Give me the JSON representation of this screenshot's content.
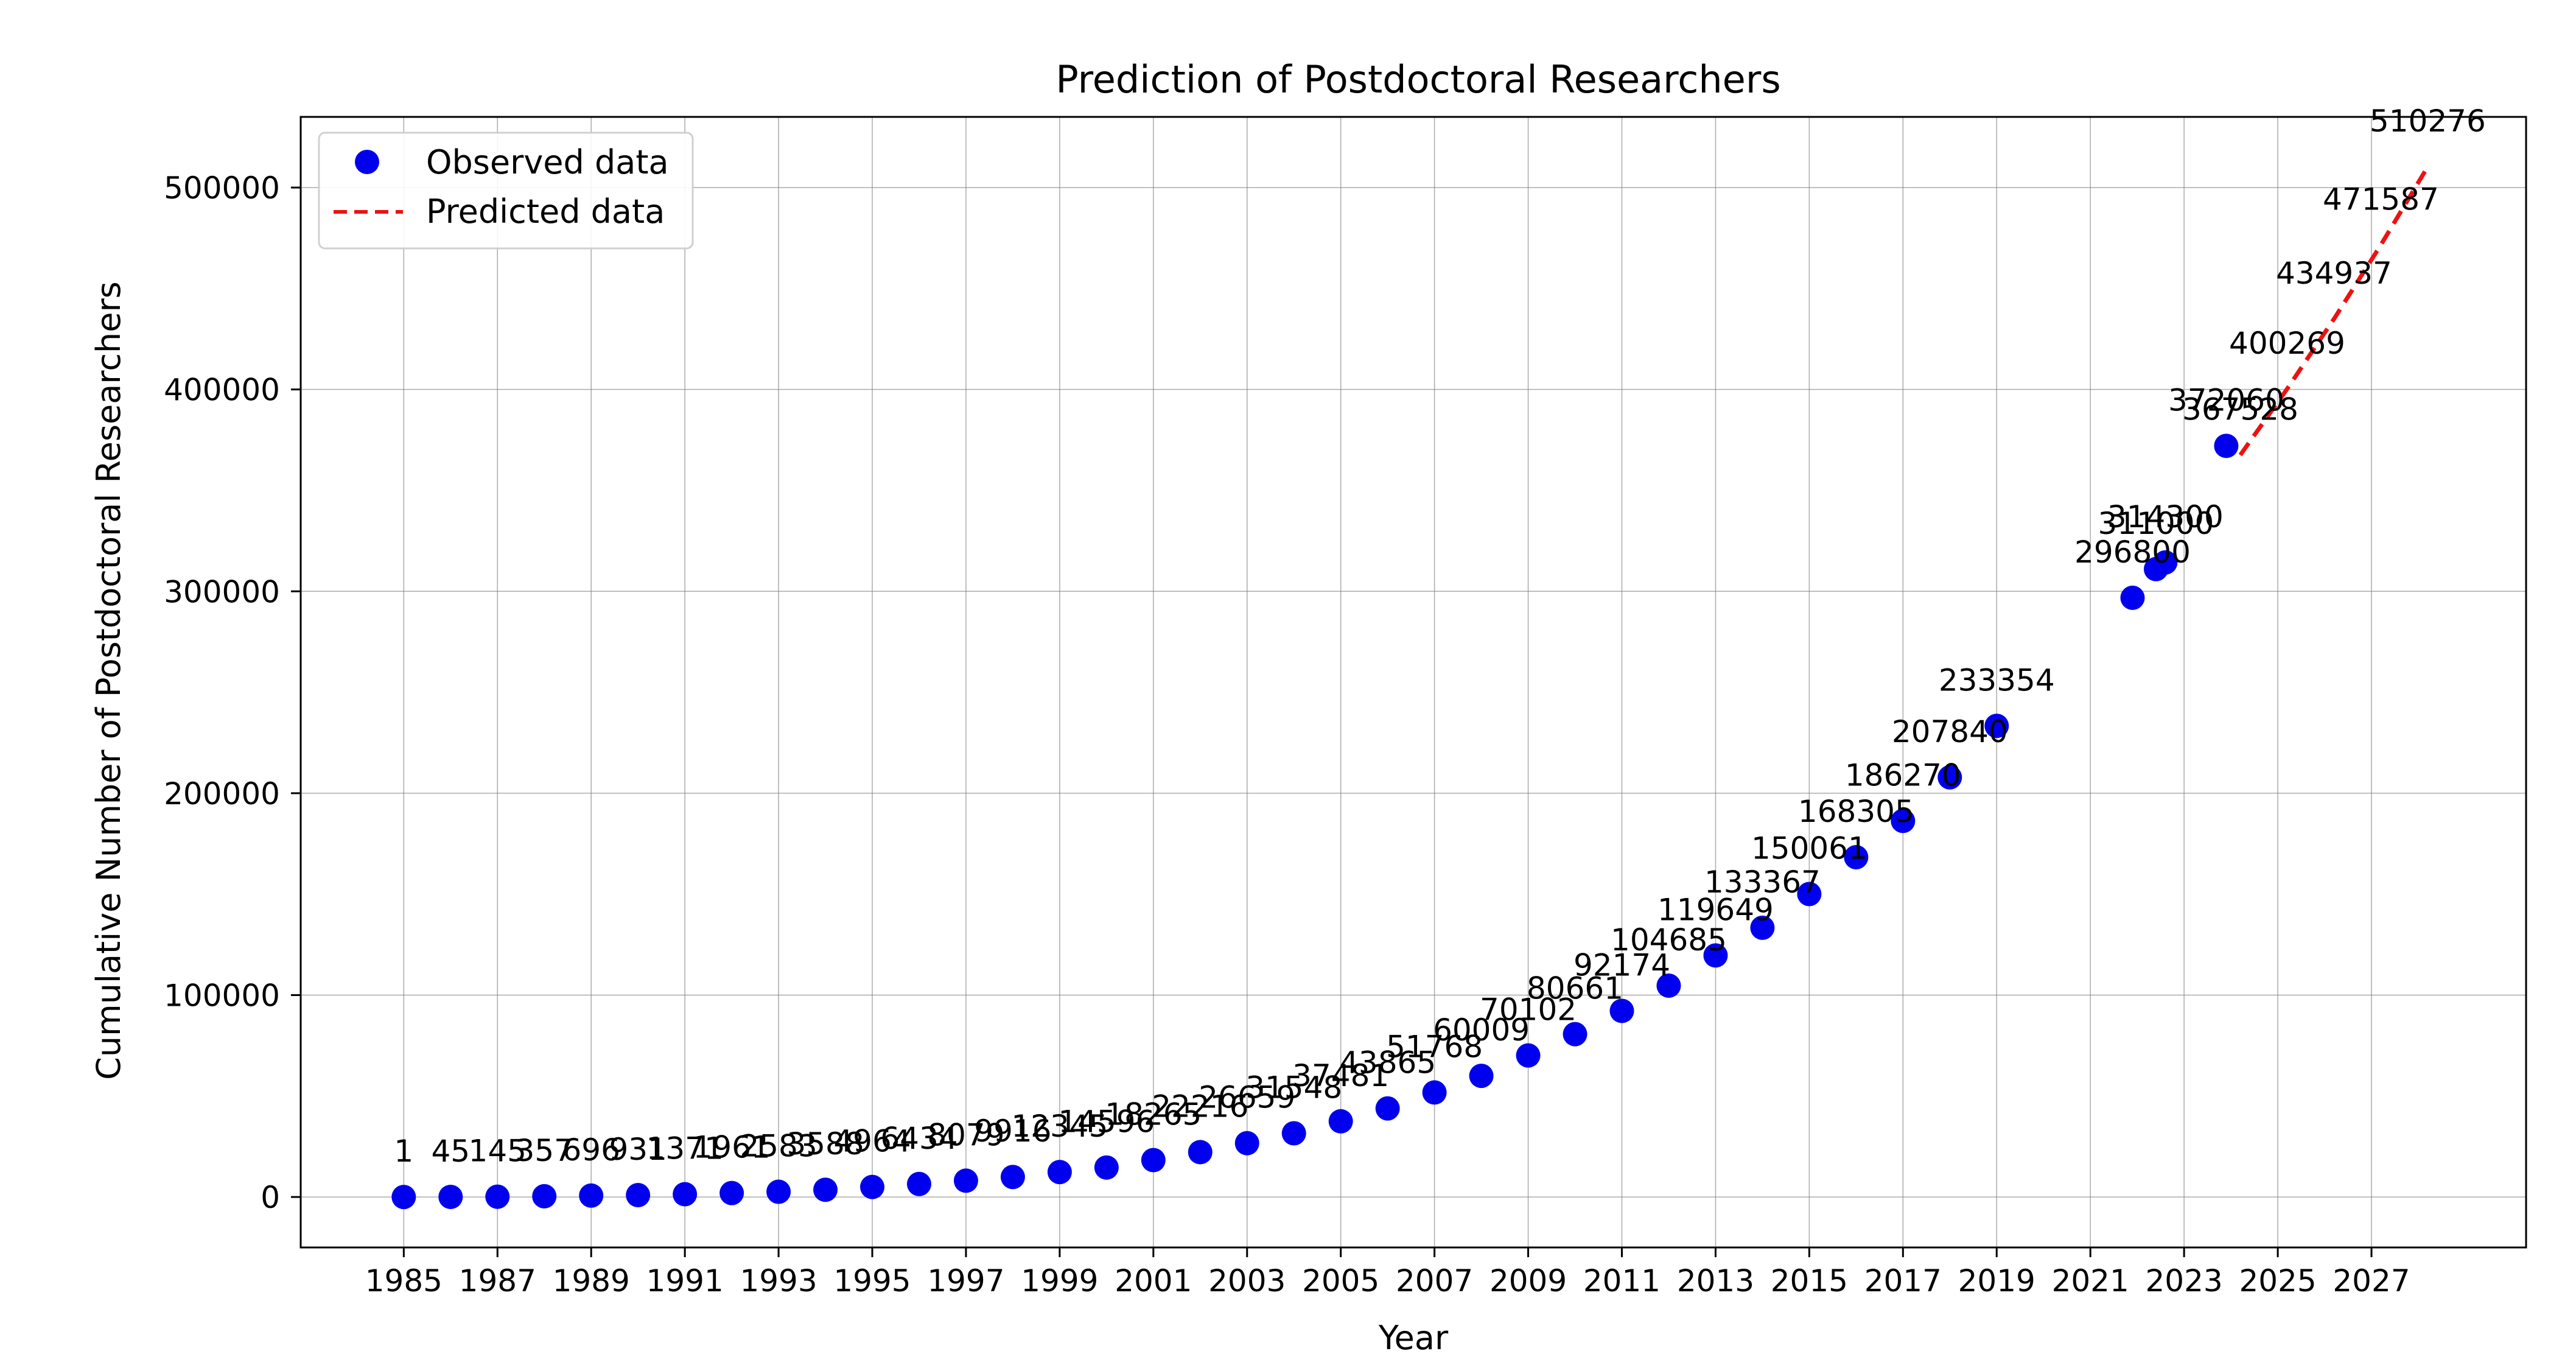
{
  "chart_data": {
    "type": "scatter",
    "title": "Prediction of Postdoctoral Researchers",
    "xlabel": "Year",
    "ylabel": "Cumulative Number of Postdoctoral Researchers",
    "xlim": [
      1982.8,
      2030.3
    ],
    "ylim": [
      -25000,
      535000
    ],
    "xticks": [
      1985,
      1987,
      1989,
      1991,
      1993,
      1995,
      1997,
      1999,
      2001,
      2003,
      2005,
      2007,
      2009,
      2011,
      2013,
      2015,
      2017,
      2019,
      2021,
      2023,
      2025,
      2027
    ],
    "yticks": [
      0,
      100000,
      200000,
      300000,
      400000,
      500000
    ],
    "grid": true,
    "legend_position": "upper-left",
    "colors": {
      "observed": "#0000ee",
      "predicted": "#ee1111"
    },
    "series": [
      {
        "name": "Observed data",
        "marker": "circle",
        "color": "#0000ee",
        "points": [
          {
            "x": 1985,
            "y": 1,
            "label": "1"
          },
          {
            "x": 1986,
            "y": 45,
            "label": "45"
          },
          {
            "x": 1987,
            "y": 145,
            "label": "145"
          },
          {
            "x": 1988,
            "y": 357,
            "label": "357"
          },
          {
            "x": 1989,
            "y": 696,
            "label": "696"
          },
          {
            "x": 1990,
            "y": 931,
            "label": "931"
          },
          {
            "x": 1991,
            "y": 1371,
            "label": "1371"
          },
          {
            "x": 1992,
            "y": 1961,
            "label": "1961"
          },
          {
            "x": 1993,
            "y": 2583,
            "label": "2583"
          },
          {
            "x": 1994,
            "y": 3588,
            "label": "3588"
          },
          {
            "x": 1995,
            "y": 4964,
            "label": "4964"
          },
          {
            "x": 1996,
            "y": 6434,
            "label": "6434"
          },
          {
            "x": 1997,
            "y": 8079,
            "label": "8079"
          },
          {
            "x": 1998,
            "y": 9916,
            "label": "9916"
          },
          {
            "x": 1999,
            "y": 12345,
            "label": "12345"
          },
          {
            "x": 2000,
            "y": 14596,
            "label": "14596"
          },
          {
            "x": 2001,
            "y": 18265,
            "label": "18265"
          },
          {
            "x": 2002,
            "y": 22216,
            "label": "22216"
          },
          {
            "x": 2003,
            "y": 26659,
            "label": "26659"
          },
          {
            "x": 2004,
            "y": 31548,
            "label": "31548"
          },
          {
            "x": 2005,
            "y": 37481,
            "label": "37481"
          },
          {
            "x": 2006,
            "y": 43865,
            "label": "43865"
          },
          {
            "x": 2007,
            "y": 51768,
            "label": "51768"
          },
          {
            "x": 2008,
            "y": 60009,
            "label": "60009"
          },
          {
            "x": 2009,
            "y": 70102,
            "label": "70102"
          },
          {
            "x": 2010,
            "y": 80661,
            "label": "80661"
          },
          {
            "x": 2011,
            "y": 92174,
            "label": "92174"
          },
          {
            "x": 2012,
            "y": 104685,
            "label": "104685"
          },
          {
            "x": 2013,
            "y": 119649,
            "label": "119649"
          },
          {
            "x": 2014,
            "y": 133367,
            "label": "133367"
          },
          {
            "x": 2015,
            "y": 150061,
            "label": "150061"
          },
          {
            "x": 2016,
            "y": 168305,
            "label": "168305"
          },
          {
            "x": 2017,
            "y": 186270,
            "label": "186270"
          },
          {
            "x": 2018,
            "y": 207840,
            "label": "207840"
          },
          {
            "x": 2019,
            "y": 233354,
            "label": "233354"
          },
          {
            "x": 2021.9,
            "y": 296800,
            "label": "296800"
          },
          {
            "x": 2022.4,
            "y": 311000,
            "label": "311000"
          },
          {
            "x": 2022.6,
            "y": 314300,
            "label": "314300"
          },
          {
            "x": 2023.9,
            "y": 372060,
            "label": "372060"
          }
        ]
      },
      {
        "name": "Predicted data",
        "line_style": "dashed",
        "color": "#ee1111",
        "points": [
          {
            "x": 2024.2,
            "y": 367528,
            "label": "367528"
          },
          {
            "x": 2025.2,
            "y": 400269,
            "label": "400269"
          },
          {
            "x": 2026.2,
            "y": 434937,
            "label": "434937"
          },
          {
            "x": 2027.2,
            "y": 471587,
            "label": "471587"
          },
          {
            "x": 2028.2,
            "y": 510276,
            "label": "510276"
          }
        ]
      }
    ]
  }
}
